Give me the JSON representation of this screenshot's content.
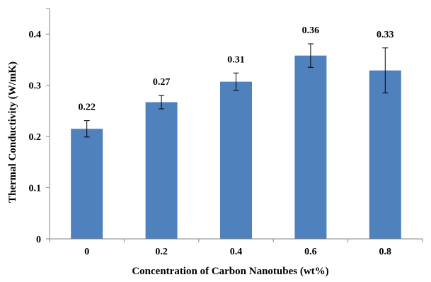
{
  "chart_data": {
    "type": "bar",
    "title": "",
    "xlabel": "Concentration of Carbon Nanotubes (wt%)",
    "ylabel": "Thermal Conductivity (W/mK)",
    "categories": [
      "0",
      "0.2",
      "0.4",
      "0.6",
      "0.8"
    ],
    "values": [
      0.215,
      0.267,
      0.307,
      0.358,
      0.329
    ],
    "data_labels": [
      "0.22",
      "0.27",
      "0.31",
      "0.36",
      "0.33"
    ],
    "error": [
      0.016,
      0.013,
      0.017,
      0.023,
      0.044
    ],
    "ylim": [
      0,
      0.45
    ],
    "yticks": [
      "0",
      "0.1",
      "0.2",
      "0.3",
      "0.4"
    ],
    "ytick_values": [
      0,
      0.1,
      0.2,
      0.3,
      0.4
    ],
    "grid": false,
    "legend": "none",
    "bar_color": "#4f81bd",
    "axis_color": "#868686"
  }
}
